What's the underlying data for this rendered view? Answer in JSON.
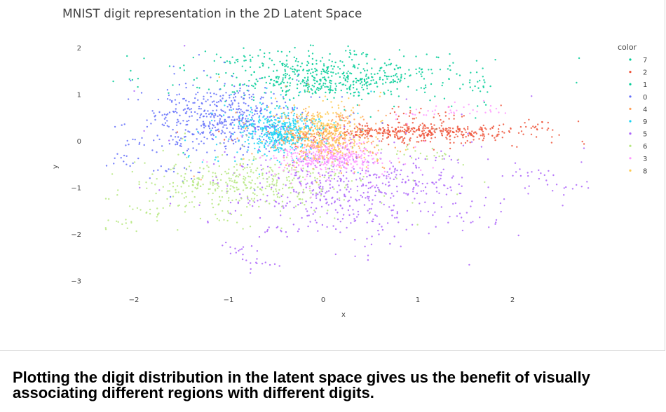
{
  "chart_data": {
    "type": "scatter",
    "title": "MNIST digit representation in the 2D Latent Space",
    "xlabel": "x",
    "ylabel": "y",
    "xlim": [
      -2.35,
      2.5
    ],
    "ylim": [
      -3.0,
      2.0
    ],
    "x_ticks": [
      -2,
      -1,
      0,
      1,
      2
    ],
    "y_ticks": [
      2,
      1,
      0,
      -1,
      -2,
      -3
    ],
    "legend_title": "color",
    "legend_position": "right",
    "grid": false,
    "series": [
      {
        "name": "7",
        "color": "#00cc96",
        "cx": 0.05,
        "cy": 1.35,
        "sx": 0.55,
        "sy": 0.22,
        "n": 520,
        "points": [
          [
            -0.9,
            1.75
          ],
          [
            -0.6,
            1.8
          ],
          [
            0.3,
            1.85
          ],
          [
            1.1,
            1.5
          ],
          [
            1.6,
            1.2
          ],
          [
            -0.3,
            1.6
          ],
          [
            0.7,
            1.4
          ],
          [
            -0.1,
            1.1
          ]
        ]
      },
      {
        "name": "2",
        "color": "#ef553b",
        "cx": 0.95,
        "cy": 0.2,
        "sx": 0.55,
        "sy": 0.09,
        "n": 420,
        "points": [
          [
            0.5,
            0.18
          ],
          [
            1.2,
            0.28
          ],
          [
            1.8,
            0.3
          ],
          [
            2.3,
            0.3
          ],
          [
            0.8,
            0.6
          ],
          [
            1.3,
            0.55
          ]
        ]
      },
      {
        "name": "1",
        "color": "#00cc96",
        "cx": 0.2,
        "cy": 1.3,
        "sx": 0.5,
        "sy": 0.18,
        "n": 0,
        "points": []
      },
      {
        "name": "0",
        "color": "#636efa",
        "cx": -1.05,
        "cy": 0.45,
        "sx": 0.35,
        "sy": 0.32,
        "n": 480,
        "points": [
          [
            -1.9,
            0.0
          ],
          [
            -2.1,
            -0.4
          ],
          [
            -1.6,
            -0.6
          ],
          [
            -0.8,
            1.0
          ],
          [
            -1.3,
            0.9
          ]
        ]
      },
      {
        "name": "4",
        "color": "#ffa15a",
        "cx": 0.05,
        "cy": 0.05,
        "sx": 0.25,
        "sy": 0.25,
        "n": 300,
        "points": [
          [
            -0.4,
            0.0
          ],
          [
            0.2,
            0.5
          ]
        ]
      },
      {
        "name": "9",
        "color": "#19d3f3",
        "cx": -0.45,
        "cy": 0.2,
        "sx": 0.2,
        "sy": 0.22,
        "n": 420,
        "points": [
          [
            -0.7,
            0.5
          ],
          [
            -0.2,
            0.35
          ]
        ]
      },
      {
        "name": "5",
        "color": "#ab63fa",
        "cx": 0.35,
        "cy": -1.0,
        "sx": 0.6,
        "sy": 0.45,
        "n": 520,
        "points": [
          [
            -0.9,
            -2.3
          ],
          [
            -0.6,
            -2.6
          ],
          [
            1.6,
            -1.7
          ],
          [
            2.2,
            -0.7
          ],
          [
            2.6,
            -1.0
          ],
          [
            0.3,
            -1.6
          ],
          [
            -0.5,
            -1.9
          ]
        ]
      },
      {
        "name": "6",
        "color": "#b6e880",
        "cx": -0.9,
        "cy": -0.9,
        "sx": 0.55,
        "sy": 0.3,
        "n": 400,
        "points": [
          [
            -2.2,
            -1.8
          ],
          [
            -1.8,
            -1.5
          ],
          [
            -0.4,
            -0.6
          ],
          [
            0.8,
            -0.2
          ],
          [
            1.2,
            -0.3
          ]
        ]
      },
      {
        "name": "3",
        "color": "#ff97ff",
        "cx": 0.1,
        "cy": -0.35,
        "sx": 0.25,
        "sy": 0.15,
        "n": 360,
        "points": [
          [
            0.9,
            0.6
          ],
          [
            1.3,
            0.65
          ],
          [
            1.7,
            0.75
          ]
        ]
      },
      {
        "name": "8",
        "color": "#fecb52",
        "cx": 0.0,
        "cy": 0.25,
        "sx": 0.22,
        "sy": 0.28,
        "n": 260,
        "points": [
          [
            -0.3,
            0.6
          ]
        ]
      }
    ]
  },
  "caption": "Plotting the digit distribution in the latent space gives us the benefit of visually associating different regions with different digits."
}
